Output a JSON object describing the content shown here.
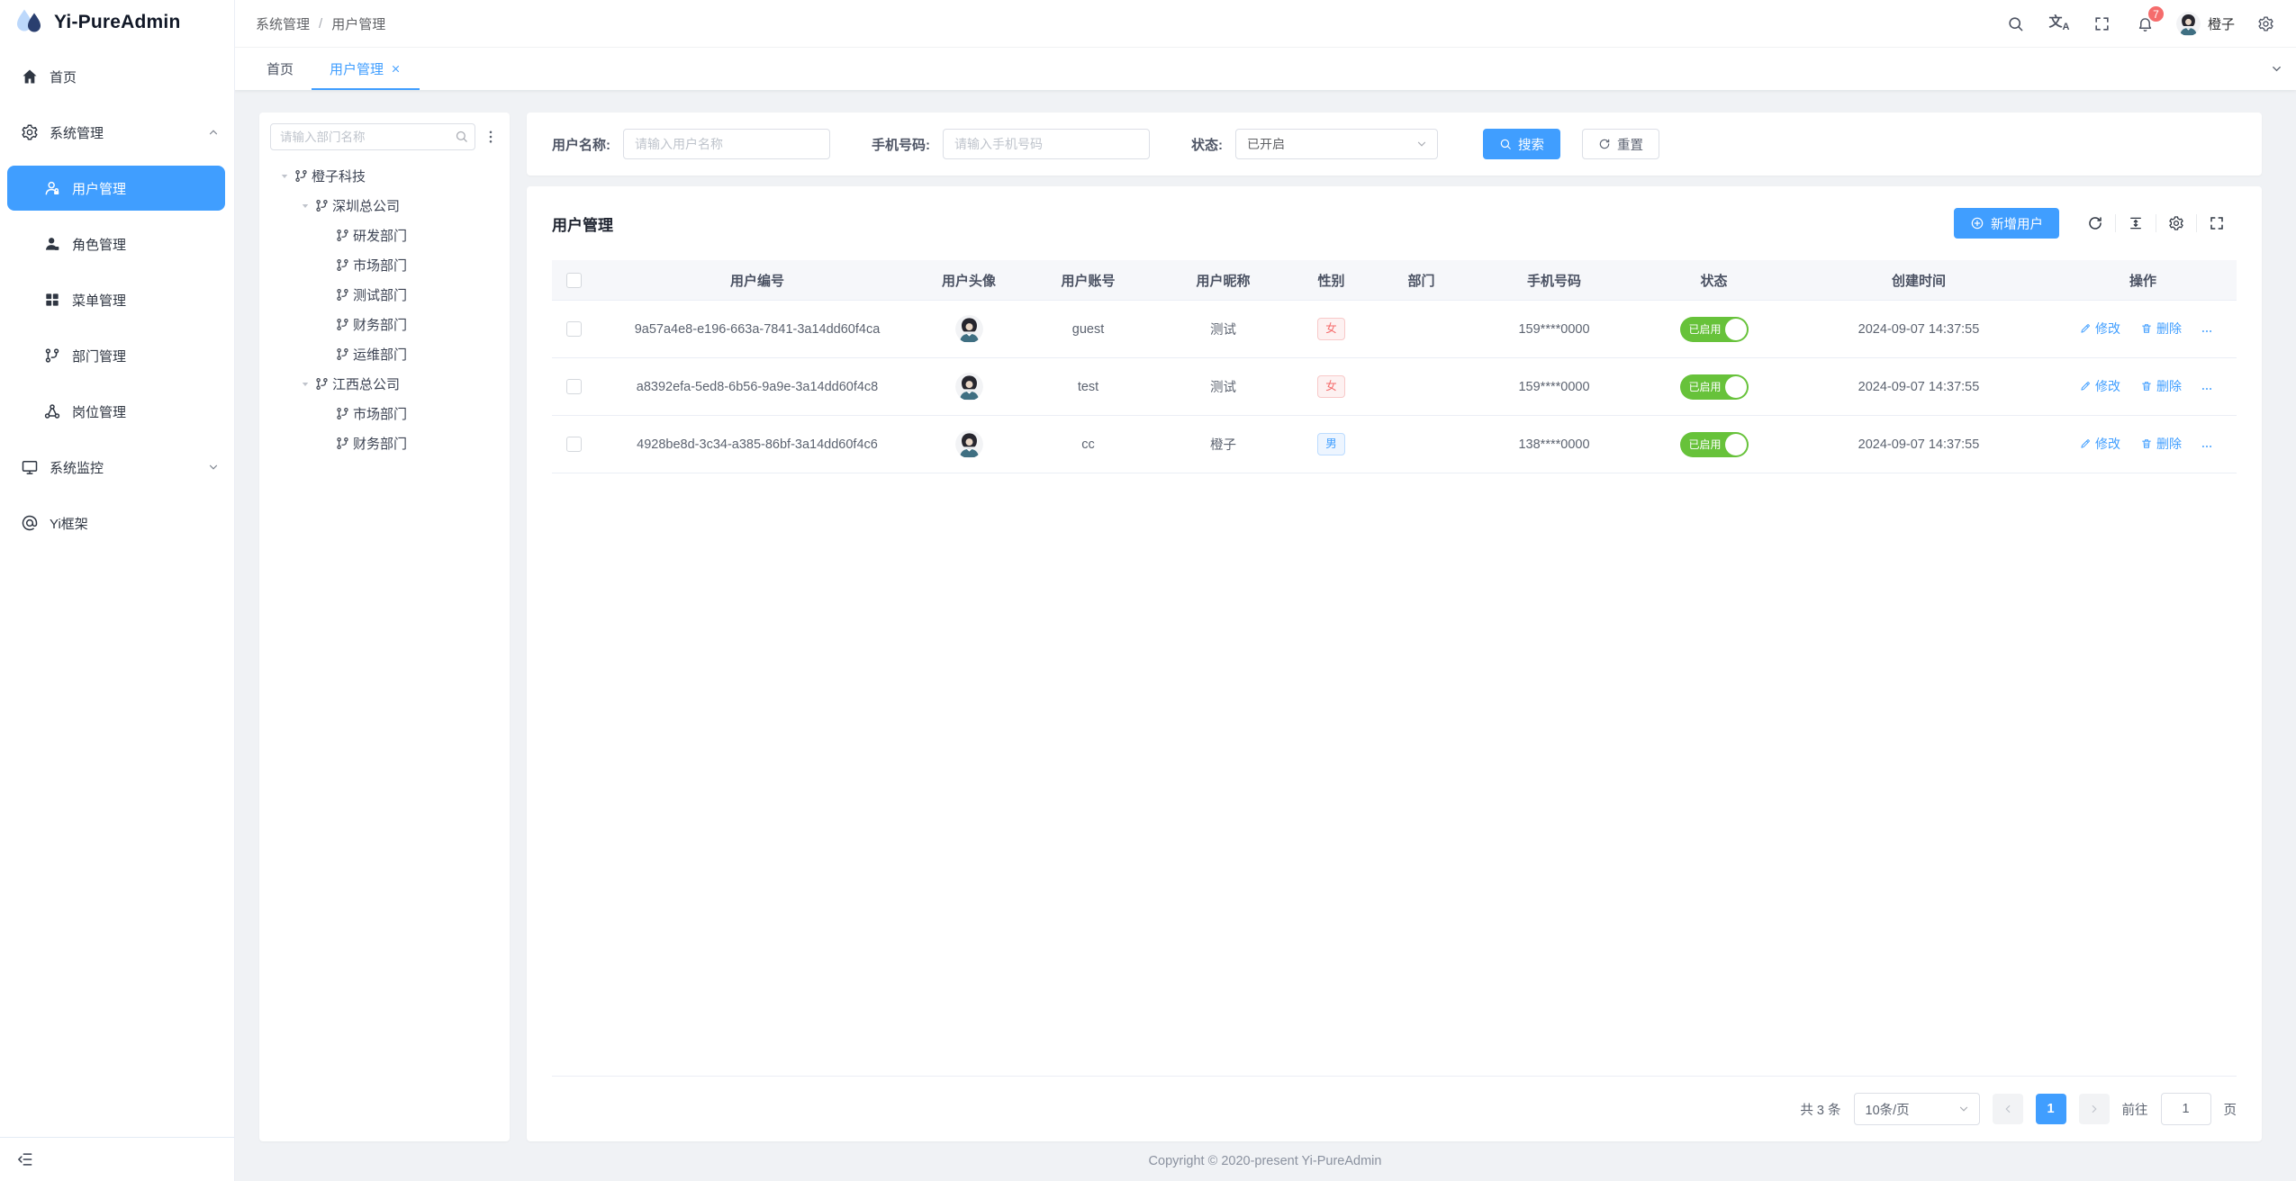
{
  "colors": {
    "primary": "#409eff",
    "success": "#67c23a",
    "danger": "#f56c6c",
    "page_bg": "#f0f2f5"
  },
  "app": {
    "title": "Yi-PureAdmin",
    "copyright": "Copyright © 2020-present Yi-PureAdmin"
  },
  "header": {
    "breadcrumb": [
      "系统管理",
      "用户管理"
    ],
    "breadcrumb_separator": "/",
    "username": "橙子",
    "notification_count": "7"
  },
  "tabs": [
    {
      "label": "首页",
      "active": false,
      "closable": false
    },
    {
      "label": "用户管理",
      "active": true,
      "closable": true
    }
  ],
  "sidebar": {
    "items": [
      {
        "label": "首页",
        "icon": "home",
        "level": 0
      },
      {
        "label": "系统管理",
        "icon": "gear",
        "level": 0,
        "chevron": "up"
      },
      {
        "label": "用户管理",
        "icon": "user-lock",
        "level": 1,
        "active": true
      },
      {
        "label": "角色管理",
        "icon": "role",
        "level": 1
      },
      {
        "label": "菜单管理",
        "icon": "menu-grid",
        "level": 1
      },
      {
        "label": "部门管理",
        "icon": "dept",
        "level": 1
      },
      {
        "label": "岗位管理",
        "icon": "post",
        "level": 1
      },
      {
        "label": "系统监控",
        "icon": "monitor",
        "level": 0,
        "chevron": "down"
      },
      {
        "label": "Yi框架",
        "icon": "at",
        "level": 0
      }
    ]
  },
  "dept_panel": {
    "search_placeholder": "请输入部门名称",
    "tree": [
      {
        "label": "橙子科技",
        "level": 0,
        "expanded": true
      },
      {
        "label": "深圳总公司",
        "level": 1,
        "expanded": true
      },
      {
        "label": "研发部门",
        "level": 2
      },
      {
        "label": "市场部门",
        "level": 2
      },
      {
        "label": "测试部门",
        "level": 2
      },
      {
        "label": "财务部门",
        "level": 2
      },
      {
        "label": "运维部门",
        "level": 2
      },
      {
        "label": "江西总公司",
        "level": 1,
        "expanded": true
      },
      {
        "label": "市场部门",
        "level": 2
      },
      {
        "label": "财务部门",
        "level": 2
      }
    ]
  },
  "filter": {
    "username": {
      "label": "用户名称:",
      "placeholder": "请输入用户名称"
    },
    "phone": {
      "label": "手机号码:",
      "placeholder": "请输入手机号码"
    },
    "status": {
      "label": "状态:",
      "value": "已开启"
    },
    "search_label": "搜索",
    "reset_label": "重置"
  },
  "panel": {
    "title": "用户管理",
    "add_button": "新增用户"
  },
  "table": {
    "columns": [
      "用户编号",
      "用户头像",
      "用户账号",
      "用户昵称",
      "性别",
      "部门",
      "手机号码",
      "状态",
      "创建时间",
      "操作"
    ],
    "edit_label": "修改",
    "delete_label": "删除",
    "rows": [
      {
        "id": "9a57a4e8-e196-663a-7841-3a14dd60f4ca",
        "account": "guest",
        "nickname": "测试",
        "gender": "女",
        "gender_type": "female",
        "dept": "",
        "phone": "159****0000",
        "status": "已启用",
        "created": "2024-09-07 14:37:55"
      },
      {
        "id": "a8392efa-5ed8-6b56-9a9e-3a14dd60f4c8",
        "account": "test",
        "nickname": "测试",
        "gender": "女",
        "gender_type": "female",
        "dept": "",
        "phone": "159****0000",
        "status": "已启用",
        "created": "2024-09-07 14:37:55"
      },
      {
        "id": "4928be8d-3c34-a385-86bf-3a14dd60f4c6",
        "account": "cc",
        "nickname": "橙子",
        "gender": "男",
        "gender_type": "male",
        "dept": "",
        "phone": "138****0000",
        "status": "已启用",
        "created": "2024-09-07 14:37:55"
      }
    ]
  },
  "pagination": {
    "total": "共 3 条",
    "page_size": "10条/页",
    "current_page": "1",
    "goto_label": "前往",
    "goto_value": "1",
    "goto_suffix": "页"
  }
}
